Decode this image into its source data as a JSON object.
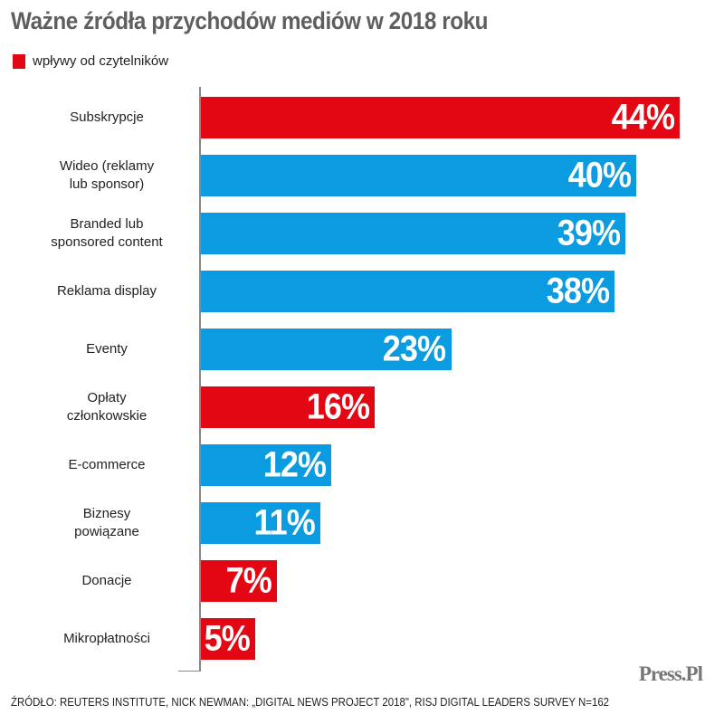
{
  "chart_data": {
    "type": "bar",
    "orientation": "horizontal",
    "title": "Ważne źródła przychodów mediów w 2018 roku",
    "legend": [
      {
        "label": "wpływy od czytelników",
        "color": "#e30613"
      }
    ],
    "categories": [
      "Subskrypcje",
      "Wideo (reklamy lub sponsor)",
      "Branded lub sponsored content",
      "Reklama display",
      "Eventy",
      "Opłaty członkowskie",
      "E-commerce",
      "Biznesy powiązane",
      "Donacje",
      "Mikropłatności"
    ],
    "label_lines": [
      [
        "Subskrypcje"
      ],
      [
        "Wideo (reklamy",
        "lub sponsor)"
      ],
      [
        "Branded lub",
        "sponsored content"
      ],
      [
        "Reklama display"
      ],
      [
        "Eventy"
      ],
      [
        "Opłaty",
        "członkowskie"
      ],
      [
        "E-commerce"
      ],
      [
        "Biznesy",
        "powiązane"
      ],
      [
        "Donacje"
      ],
      [
        "Mikropłatności"
      ]
    ],
    "values": [
      44,
      40,
      39,
      38,
      23,
      16,
      12,
      11,
      7,
      5
    ],
    "value_labels": [
      "44%",
      "40%",
      "39%",
      "38%",
      "23%",
      "16%",
      "12%",
      "11%",
      "7%",
      "5%"
    ],
    "reader_revenue": [
      true,
      false,
      false,
      false,
      false,
      true,
      false,
      false,
      true,
      true
    ],
    "colors": {
      "reader": "#e30613",
      "other": "#0a9be0"
    },
    "xlim": [
      0,
      44
    ]
  },
  "source": "ŹRÓDŁO: REUTERS INSTITUTE, NICK NEWMAN: „DIGITAL NEWS PROJECT 2018\", RISJ DIGITAL LEADERS SURVEY N=162",
  "logo": "PRESS.PL"
}
